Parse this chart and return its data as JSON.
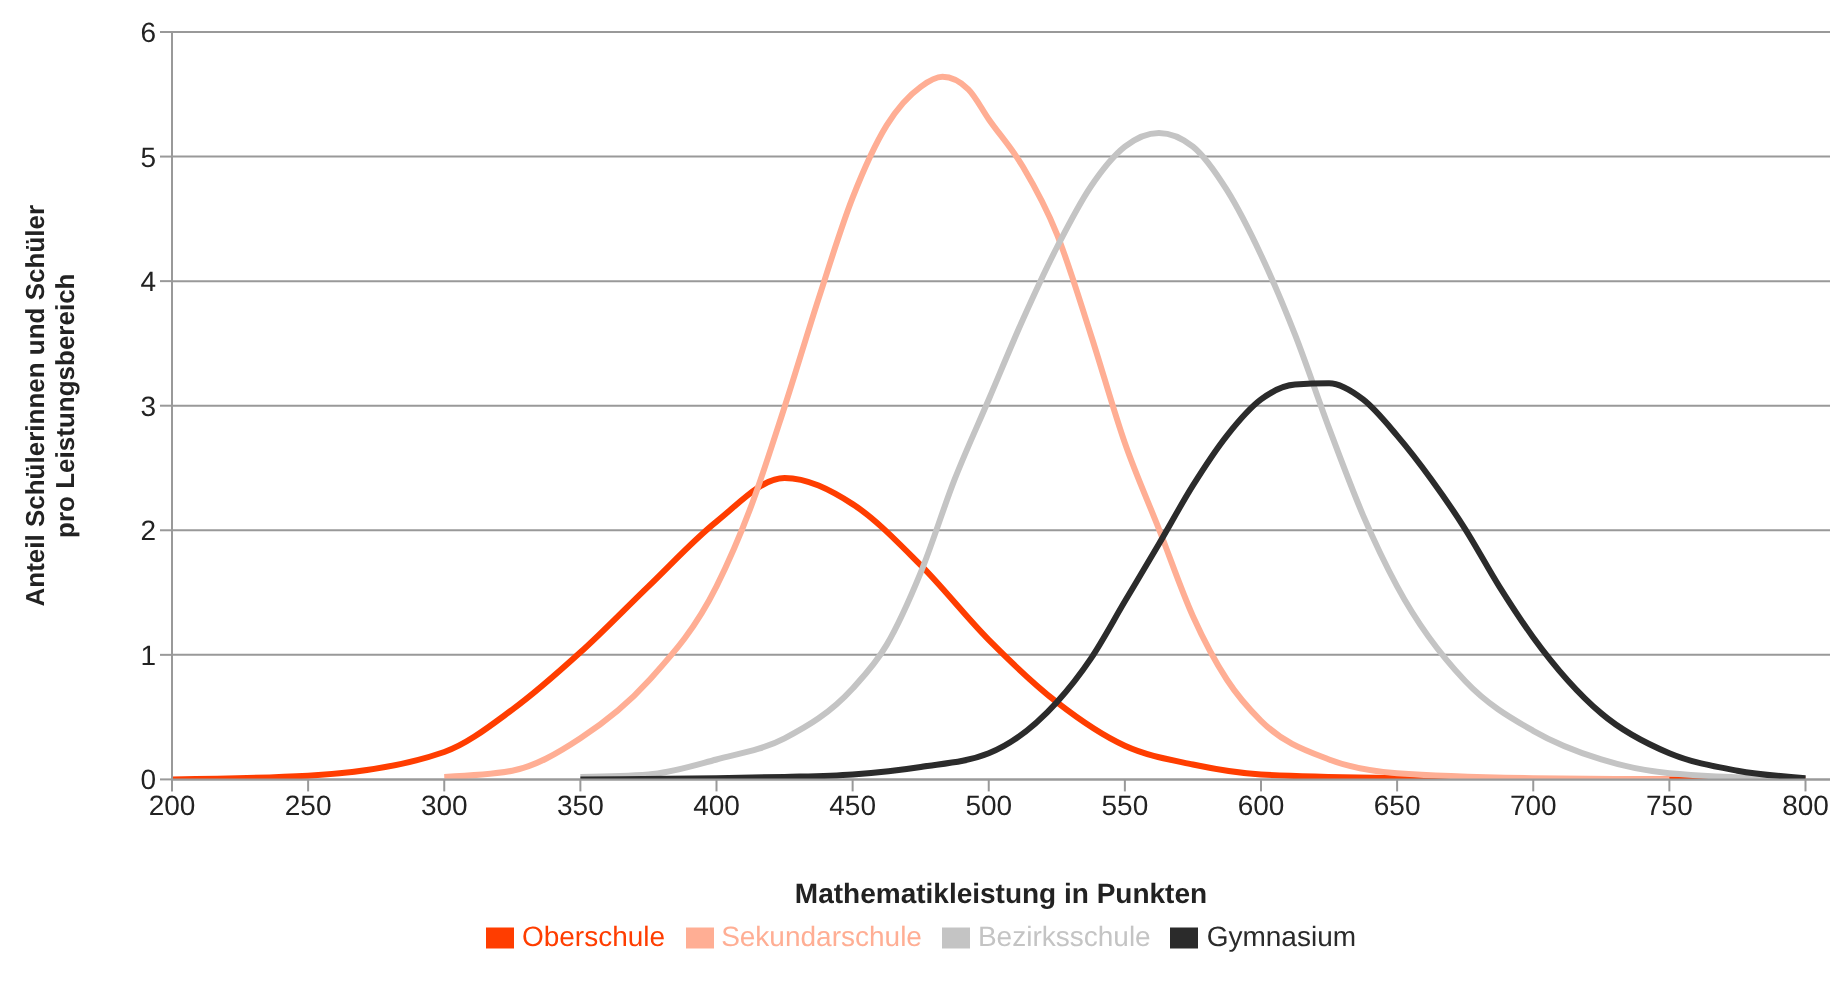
{
  "chart_data": {
    "type": "line",
    "xlabel": "Mathematikleistung in Punkten",
    "ylabel": "Anteil Schülerinnen und Schüler pro Leistungsbereich",
    "xlim": [
      200,
      809
    ],
    "xticks": [
      200,
      250,
      300,
      350,
      400,
      450,
      500,
      550,
      600,
      650,
      700,
      750,
      800
    ],
    "ylim": [
      0,
      6
    ],
    "yticks": [
      0,
      1,
      2,
      3,
      4,
      5,
      6
    ],
    "grid": "y",
    "legend": "bottom",
    "marker": "none",
    "line_style": "solid",
    "series": [
      {
        "name": "Oberschule",
        "color": "#ff3d00",
        "x": [
          200,
          250,
          300,
          325,
          350,
          375,
          400,
          425,
          450,
          475,
          500,
          525,
          550,
          575,
          600,
          650,
          700,
          800
        ],
        "values": [
          0,
          0.03,
          0.22,
          0.56,
          1.02,
          1.55,
          2.07,
          2.42,
          2.21,
          1.72,
          1.12,
          0.62,
          0.27,
          0.12,
          0.04,
          0.01,
          0,
          0
        ]
      },
      {
        "name": "Sekundarschule",
        "color": "#ffae94",
        "x": [
          300,
          325,
          350,
          375,
          400,
          412.5,
          425,
          437.5,
          450,
          462.5,
          475,
          483,
          492.5,
          500,
          512.5,
          525,
          537.5,
          550,
          562.5,
          575,
          587.5,
          600,
          625,
          650,
          700,
          750
        ],
        "values": [
          0.02,
          0.07,
          0.33,
          0.79,
          1.55,
          2.18,
          2.99,
          3.86,
          4.67,
          5.25,
          5.56,
          5.64,
          5.54,
          5.3,
          4.92,
          4.38,
          3.57,
          2.7,
          2.01,
          1.31,
          0.8,
          0.47,
          0.16,
          0.05,
          0.01,
          0
        ]
      },
      {
        "name": "Bezirksschule",
        "color": "#c4c4c4",
        "x": [
          350,
          375,
          400,
          425,
          450,
          462.5,
          475,
          487.5,
          500,
          512.5,
          525,
          537.5,
          550,
          562.5,
          575,
          587.5,
          600,
          612.5,
          625,
          637.5,
          650,
          675,
          700,
          725,
          750,
          800
        ],
        "values": [
          0.02,
          0.04,
          0.16,
          0.33,
          0.73,
          1.08,
          1.66,
          2.41,
          3.05,
          3.69,
          4.27,
          4.76,
          5.08,
          5.19,
          5.08,
          4.73,
          4.21,
          3.57,
          2.82,
          2.12,
          1.55,
          0.79,
          0.39,
          0.16,
          0.05,
          0
        ]
      },
      {
        "name": "Gymnasium",
        "color": "#2b2b2b",
        "x": [
          350,
          400,
          425,
          450,
          475,
          500,
          525,
          537.5,
          550,
          562.5,
          575,
          587.5,
          600,
          612.5,
          625,
          637.5,
          650,
          662.5,
          675,
          687.5,
          700,
          725,
          750,
          775,
          800
        ],
        "values": [
          0,
          0.01,
          0.02,
          0.04,
          0.1,
          0.21,
          0.62,
          0.97,
          1.43,
          1.89,
          2.36,
          2.76,
          3.05,
          3.17,
          3.18,
          3.05,
          2.76,
          2.41,
          2.01,
          1.55,
          1.14,
          0.53,
          0.21,
          0.07,
          0.01
        ]
      }
    ]
  }
}
